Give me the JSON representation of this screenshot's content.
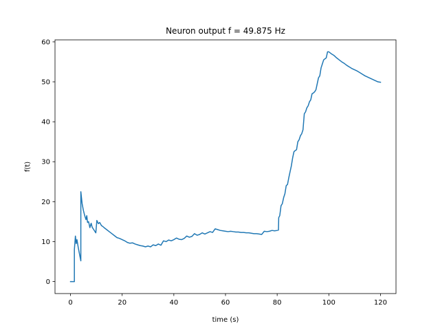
{
  "chart_data": {
    "type": "line",
    "title": "Neuron output f = 49.875 Hz",
    "xlabel": "time (s)",
    "ylabel": "f(t)",
    "xlim": [
      -6,
      126
    ],
    "ylim": [
      -3,
      60.5
    ],
    "x_ticks": [
      0,
      20,
      40,
      60,
      80,
      100,
      120
    ],
    "y_ticks": [
      0,
      10,
      20,
      30,
      40,
      50,
      60
    ],
    "grid": false,
    "legend": "none",
    "series": [
      {
        "color": "#1f77b4",
        "points": [
          [
            0,
            0
          ],
          [
            1.5,
            0
          ],
          [
            1.5,
            8
          ],
          [
            1.9,
            11.4
          ],
          [
            2.2,
            9.5
          ],
          [
            2.5,
            10.5
          ],
          [
            3,
            8.5
          ],
          [
            3.6,
            6.5
          ],
          [
            4,
            5.2
          ],
          [
            4,
            22.5
          ],
          [
            4.5,
            19.5
          ],
          [
            5,
            17.8
          ],
          [
            5.5,
            16.5
          ],
          [
            6,
            15.5
          ],
          [
            6.3,
            16.5
          ],
          [
            6.6,
            14.8
          ],
          [
            7,
            15
          ],
          [
            7.5,
            13.5
          ],
          [
            8,
            14.6
          ],
          [
            8.4,
            13.6
          ],
          [
            9,
            13
          ],
          [
            9.8,
            12.2
          ],
          [
            10.2,
            15.3
          ],
          [
            10.8,
            14.5
          ],
          [
            11.3,
            14.8
          ],
          [
            12,
            14
          ],
          [
            12.5,
            13.8
          ],
          [
            13,
            13.5
          ],
          [
            14,
            13
          ],
          [
            15,
            12.5
          ],
          [
            16,
            12
          ],
          [
            17,
            11.5
          ],
          [
            18,
            11
          ],
          [
            19,
            10.8
          ],
          [
            20,
            10.5
          ],
          [
            21,
            10.2
          ],
          [
            22,
            9.8
          ],
          [
            23,
            9.6
          ],
          [
            24,
            9.7
          ],
          [
            25,
            9.4
          ],
          [
            26,
            9.2
          ],
          [
            27,
            9
          ],
          [
            28,
            8.9
          ],
          [
            29,
            8.7
          ],
          [
            30,
            8.9
          ],
          [
            31,
            8.7
          ],
          [
            32,
            9.2
          ],
          [
            33,
            9
          ],
          [
            34,
            9.4
          ],
          [
            35,
            9.1
          ],
          [
            36,
            10.2
          ],
          [
            37,
            10
          ],
          [
            38,
            10.4
          ],
          [
            39,
            10.2
          ],
          [
            40,
            10.5
          ],
          [
            41,
            10.9
          ],
          [
            42,
            10.6
          ],
          [
            43,
            10.5
          ],
          [
            44,
            10.8
          ],
          [
            45,
            11.4
          ],
          [
            46,
            11.1
          ],
          [
            47,
            11.3
          ],
          [
            48,
            12
          ],
          [
            49,
            11.6
          ],
          [
            50,
            11.8
          ],
          [
            51,
            12.2
          ],
          [
            52,
            11.9
          ],
          [
            53,
            12.2
          ],
          [
            54,
            12.5
          ],
          [
            55,
            12.3
          ],
          [
            56,
            13.2
          ],
          [
            57,
            13
          ],
          [
            58,
            12.8
          ],
          [
            59,
            12.7
          ],
          [
            60,
            12.6
          ],
          [
            61,
            12.5
          ],
          [
            62,
            12.6
          ],
          [
            63,
            12.5
          ],
          [
            64,
            12.4
          ],
          [
            65,
            12.4
          ],
          [
            66,
            12.3
          ],
          [
            67,
            12.3
          ],
          [
            68,
            12.2
          ],
          [
            69,
            12.2
          ],
          [
            70,
            12.1
          ],
          [
            71,
            12
          ],
          [
            72,
            12
          ],
          [
            73,
            11.9
          ],
          [
            74,
            11.8
          ],
          [
            75,
            12.6
          ],
          [
            76,
            12.5
          ],
          [
            77,
            12.6
          ],
          [
            78,
            12.8
          ],
          [
            79,
            12.7
          ],
          [
            80,
            12.8
          ],
          [
            80.5,
            12.9
          ],
          [
            80.6,
            16
          ],
          [
            81,
            16.5
          ],
          [
            81.5,
            19
          ],
          [
            82,
            19.5
          ],
          [
            82.5,
            21
          ],
          [
            83,
            22
          ],
          [
            83.5,
            24
          ],
          [
            84,
            24.3
          ],
          [
            84.5,
            26
          ],
          [
            85,
            27.5
          ],
          [
            85.5,
            29
          ],
          [
            86,
            31
          ],
          [
            86.5,
            32.5
          ],
          [
            87,
            32.8
          ],
          [
            87.5,
            33
          ],
          [
            88,
            35
          ],
          [
            88.5,
            35.5
          ],
          [
            89,
            36.5
          ],
          [
            89.5,
            37
          ],
          [
            90,
            38
          ],
          [
            90.5,
            42
          ],
          [
            91,
            42.5
          ],
          [
            91.5,
            43.5
          ],
          [
            92,
            44
          ],
          [
            92.5,
            45
          ],
          [
            93,
            45.5
          ],
          [
            93.5,
            47
          ],
          [
            94,
            47.2
          ],
          [
            94.5,
            47.5
          ],
          [
            95,
            48
          ],
          [
            95.5,
            49.5
          ],
          [
            96,
            51
          ],
          [
            96.5,
            51.5
          ],
          [
            97,
            53.5
          ],
          [
            97.5,
            54.5
          ],
          [
            98,
            55.5
          ],
          [
            99,
            56
          ],
          [
            99.5,
            57.5
          ],
          [
            100,
            57.5
          ],
          [
            101,
            57
          ],
          [
            102,
            56.6
          ],
          [
            103,
            56
          ],
          [
            104,
            55.5
          ],
          [
            105,
            55
          ],
          [
            106,
            54.6
          ],
          [
            107,
            54.1
          ],
          [
            108,
            53.7
          ],
          [
            109,
            53.3
          ],
          [
            110,
            53
          ],
          [
            111,
            52.7
          ],
          [
            112,
            52.3
          ],
          [
            113,
            51.9
          ],
          [
            114,
            51.5
          ],
          [
            115,
            51.2
          ],
          [
            116,
            50.9
          ],
          [
            117,
            50.6
          ],
          [
            118,
            50.3
          ],
          [
            119,
            50
          ],
          [
            120,
            49.9
          ]
        ]
      }
    ]
  }
}
